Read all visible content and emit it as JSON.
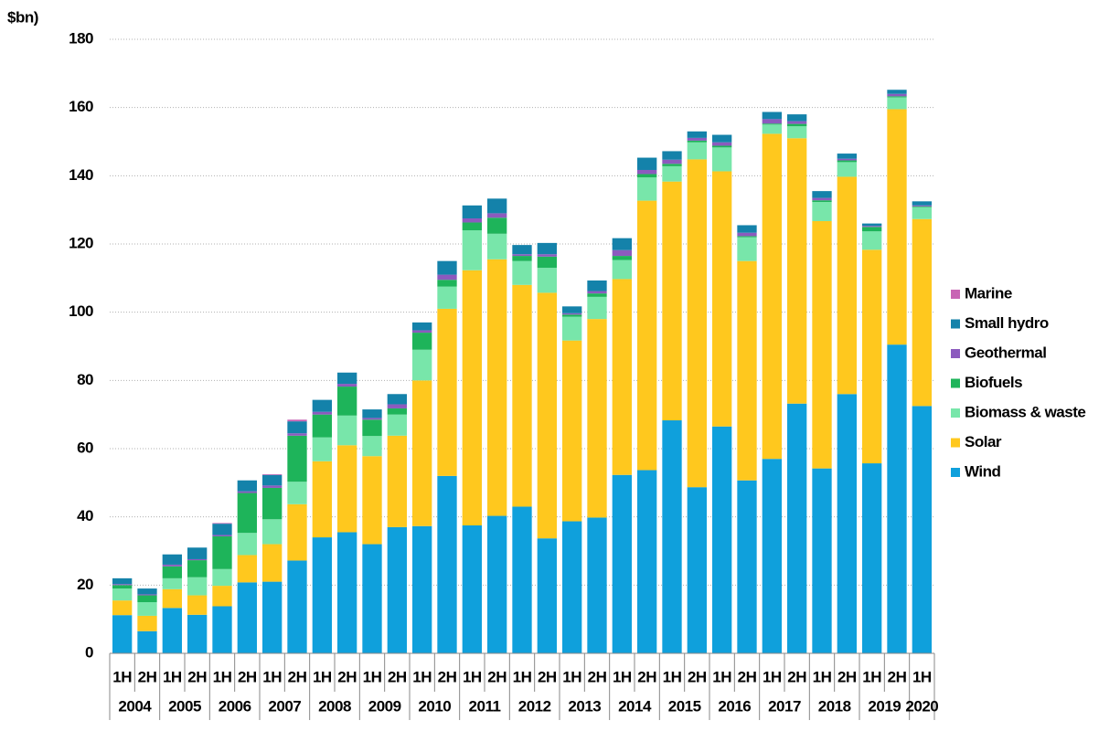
{
  "chart_data": {
    "type": "stacked_bar",
    "y_label": "$bn)",
    "categories": [
      "1H",
      "2H",
      "1H",
      "2H",
      "1H",
      "2H",
      "1H",
      "2H",
      "1H",
      "2H",
      "1H",
      "2H",
      "1H",
      "2H",
      "1H",
      "2H",
      "1H",
      "2H",
      "1H",
      "2H",
      "1H",
      "2H",
      "1H",
      "2H",
      "1H",
      "2H",
      "1H",
      "2H",
      "1H",
      "2H",
      "1H",
      "2H",
      "1H"
    ],
    "year_groups": [
      "2004",
      "2005",
      "2006",
      "2007",
      "2008",
      "2009",
      "2010",
      "2011",
      "2012",
      "2013",
      "2014",
      "2015",
      "2016",
      "2017",
      "2018",
      "2019",
      "2020"
    ],
    "ylim": [
      0,
      180
    ],
    "yticks": [
      0,
      20,
      40,
      60,
      80,
      100,
      120,
      140,
      160,
      180
    ],
    "grid": true,
    "series": [
      {
        "name": "Wind",
        "color": "#0fa0dc",
        "values": [
          11.2,
          6.5,
          13.3,
          11.3,
          13.8,
          20.8,
          21,
          27.2,
          34,
          35.5,
          32,
          37,
          37.3,
          52,
          37.5,
          40.3,
          43,
          33.7,
          38.7,
          39.8,
          52.3,
          53.7,
          68.3,
          48.7,
          66.5,
          50.7,
          57,
          73.2,
          54.2,
          76,
          55.7,
          90.5,
          72.5
        ]
      },
      {
        "name": "Solar",
        "color": "#ffc81e",
        "values": [
          4.3,
          4.5,
          5.5,
          5.7,
          6,
          8,
          11,
          16.5,
          22.3,
          25.5,
          25.8,
          26.8,
          42.7,
          49,
          74.8,
          75.2,
          65,
          72,
          53,
          58.2,
          57.4,
          79,
          70,
          96.1,
          74.8,
          64.3,
          95.3,
          77.8,
          72.5,
          63.7,
          62.6,
          69,
          54.8
        ]
      },
      {
        "name": "Biomass & waste",
        "color": "#78e6aa",
        "values": [
          3.5,
          4,
          3.2,
          5.3,
          4.9,
          6.5,
          7.3,
          6.6,
          7,
          8.7,
          5.9,
          6.2,
          9,
          6.5,
          11.7,
          7.5,
          7,
          7.3,
          7,
          6.5,
          5.6,
          6.8,
          4.5,
          5,
          7,
          7,
          2.7,
          3.5,
          5.6,
          4.3,
          5.4,
          3.5,
          3.5
        ]
      },
      {
        "name": "Biofuels",
        "color": "#1eb45a",
        "values": [
          1,
          2,
          3.5,
          5,
          9.6,
          11.7,
          9.2,
          13.5,
          6.7,
          8.5,
          4.8,
          1.8,
          5,
          2,
          2.3,
          4.7,
          1.5,
          3.3,
          0.6,
          1,
          1.2,
          1,
          0.7,
          0.5,
          0.5,
          0.3,
          0.3,
          0.7,
          0.5,
          0.5,
          1.3,
          0.3,
          0.2
        ]
      },
      {
        "name": "Geothermal",
        "color": "#8c5abe",
        "values": [
          0.3,
          0.3,
          0.5,
          0.3,
          0.4,
          0.5,
          0.7,
          0.7,
          0.8,
          0.8,
          0.5,
          1.2,
          0.7,
          1.5,
          1.2,
          1.3,
          0.5,
          0.7,
          0.4,
          0.7,
          1.7,
          1.2,
          1.2,
          0.8,
          1,
          1,
          1.3,
          0.8,
          0.7,
          0.5,
          0.3,
          0.7,
          0.3
        ]
      },
      {
        "name": "Small hydro",
        "color": "#1482aa",
        "values": [
          1.7,
          1.7,
          3,
          3.4,
          3.3,
          3.2,
          3.1,
          3.5,
          3.5,
          3.3,
          2.5,
          3,
          2.3,
          4,
          3.8,
          4.3,
          2.7,
          3.3,
          2,
          3.1,
          3.5,
          3.6,
          2.5,
          1.9,
          2.2,
          2.2,
          2.1,
          2,
          2,
          1.5,
          0.7,
          1.2,
          1.2
        ]
      },
      {
        "name": "Marine",
        "color": "#c864b4",
        "values": [
          0,
          0,
          0,
          0,
          0.2,
          0,
          0.2,
          0.5,
          0,
          0,
          0,
          0,
          0,
          0,
          0,
          0,
          0,
          0,
          0,
          0,
          0,
          0,
          0,
          0,
          0,
          0,
          0,
          0,
          0,
          0,
          0,
          0,
          0
        ]
      }
    ]
  }
}
